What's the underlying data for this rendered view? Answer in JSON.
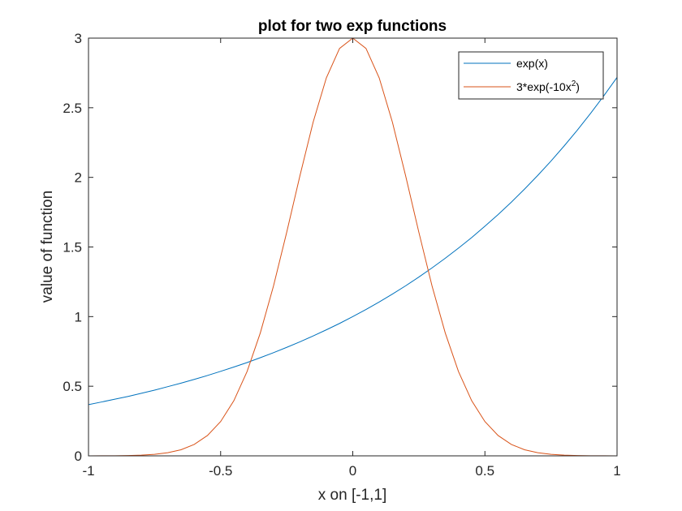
{
  "chart_data": {
    "type": "line",
    "title": "plot for two exp functions",
    "xlabel": "x on [-1,1]",
    "ylabel": "value of function",
    "xlim": [
      -1,
      1
    ],
    "ylim": [
      0,
      3
    ],
    "xticks": [
      -1,
      -0.5,
      0,
      0.5,
      1
    ],
    "xtick_labels": [
      "-1",
      "-0.5",
      "0",
      "0.5",
      "1"
    ],
    "yticks": [
      0,
      0.5,
      1,
      1.5,
      2,
      2.5,
      3
    ],
    "ytick_labels": [
      "0",
      "0.5",
      "1",
      "1.5",
      "2",
      "2.5",
      "3"
    ],
    "grid": false,
    "legend_placement": "top-right",
    "series": [
      {
        "name": "exp(x)",
        "color": "#0072BD",
        "x": [
          -1,
          -0.95,
          -0.9,
          -0.85,
          -0.8,
          -0.75,
          -0.7,
          -0.65,
          -0.6,
          -0.55,
          -0.5,
          -0.45,
          -0.4,
          -0.35,
          -0.3,
          -0.25,
          -0.2,
          -0.15,
          -0.1,
          -0.05,
          0,
          0.05,
          0.1,
          0.15,
          0.2,
          0.25,
          0.3,
          0.35,
          0.4,
          0.45,
          0.5,
          0.55,
          0.6,
          0.65,
          0.7,
          0.75,
          0.8,
          0.85,
          0.9,
          0.95,
          1
        ],
        "y": [
          0.368,
          0.387,
          0.407,
          0.427,
          0.449,
          0.472,
          0.497,
          0.522,
          0.549,
          0.577,
          0.607,
          0.638,
          0.67,
          0.705,
          0.741,
          0.779,
          0.819,
          0.861,
          0.905,
          0.951,
          1.0,
          1.051,
          1.105,
          1.162,
          1.221,
          1.284,
          1.35,
          1.419,
          1.492,
          1.568,
          1.649,
          1.733,
          1.822,
          1.916,
          2.014,
          2.117,
          2.226,
          2.34,
          2.46,
          2.586,
          2.718
        ]
      },
      {
        "name_prefix": "3*exp(-10x",
        "name_sup": "2",
        "name_suffix": ")",
        "color": "#D95319",
        "x": [
          -1,
          -0.95,
          -0.9,
          -0.85,
          -0.8,
          -0.75,
          -0.7,
          -0.65,
          -0.6,
          -0.55,
          -0.5,
          -0.45,
          -0.4,
          -0.35,
          -0.3,
          -0.25,
          -0.2,
          -0.15,
          -0.1,
          -0.05,
          0,
          0.05,
          0.1,
          0.15,
          0.2,
          0.25,
          0.3,
          0.35,
          0.4,
          0.45,
          0.5,
          0.55,
          0.6,
          0.65,
          0.7,
          0.75,
          0.8,
          0.85,
          0.9,
          0.95,
          1
        ],
        "y": [
          0.0001,
          0.0004,
          0.0009,
          0.0022,
          0.005,
          0.0108,
          0.0223,
          0.0438,
          0.082,
          0.1459,
          0.2463,
          0.3957,
          0.6057,
          0.8821,
          1.2197,
          1.6059,
          2.011,
          2.3964,
          2.7145,
          2.9262,
          3.0,
          2.9262,
          2.7145,
          2.3964,
          2.011,
          1.6059,
          1.2197,
          0.8821,
          0.6057,
          0.3957,
          0.2463,
          0.1459,
          0.082,
          0.0438,
          0.0223,
          0.0108,
          0.005,
          0.0022,
          0.0009,
          0.0004,
          0.0001
        ]
      }
    ]
  }
}
